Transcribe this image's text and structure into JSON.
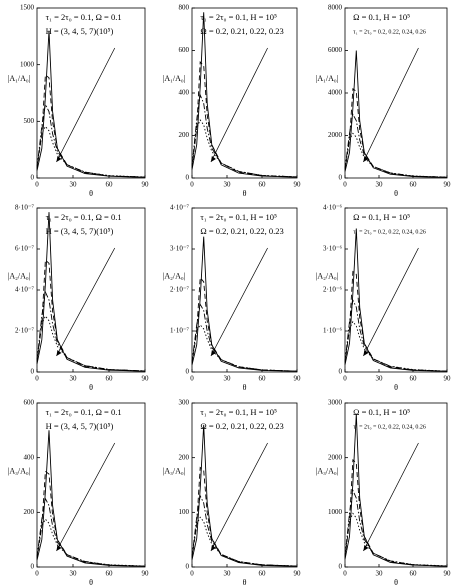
{
  "chart_data": [
    {
      "type": "line",
      "x_label": "θ",
      "y_label": "|A₁/A₀|",
      "annotations": [
        "τ₁ = 2τ₀ = 0.1, Ω = 0.1",
        "H = (3, 4, 5, 7)(10⁵)"
      ],
      "x": [
        0,
        4,
        7,
        10,
        13,
        17,
        25,
        40,
        60,
        90
      ],
      "xlim": [
        0,
        90
      ],
      "xticks": [
        0,
        30,
        60,
        90
      ],
      "ylim": [
        0,
        1500
      ],
      "yticks": [
        0,
        500,
        1000,
        1500
      ],
      "series": [
        {
          "color": "#000000",
          "dash": "solid",
          "values": [
            65,
            260,
            715,
            1300,
            585,
            260,
            104,
            39,
            16,
            6.5
          ]
        },
        {
          "color": "#000000",
          "dash": "dashed",
          "values": [
            78,
            390,
            910,
            884,
            494,
            260,
            117,
            45.5,
            18,
            8
          ]
        },
        {
          "color": "#000000",
          "dash": "dashdot",
          "values": [
            91,
            455,
            650,
            585,
            390,
            234,
            117,
            52,
            19.5,
            8
          ]
        },
        {
          "color": "#000000",
          "dash": "dotted",
          "values": [
            104,
            390,
            455,
            416,
            312,
            208,
            117,
            52,
            21,
            9
          ]
        }
      ]
    },
    {
      "type": "line",
      "x_label": "θ",
      "y_label": "|A₁/A₀|",
      "annotations": [
        "τ₁ = 2τ₀ = 0.1, H = 10⁵",
        "Ω = 0.2, 0.21, 0.22, 0.23"
      ],
      "x": [
        0,
        4,
        7,
        10,
        13,
        17,
        25,
        40,
        60,
        90
      ],
      "xlim": [
        0,
        90
      ],
      "xticks": [
        0,
        30,
        60,
        90
      ],
      "ylim": [
        0,
        800
      ],
      "yticks": [
        0,
        200,
        400,
        600,
        800
      ],
      "series": [
        {
          "color": "#000000",
          "dash": "solid",
          "values": [
            39,
            156,
            429,
            780,
            351,
            156,
            62,
            23,
            9,
            4
          ]
        },
        {
          "color": "#000000",
          "dash": "dashed",
          "values": [
            47,
            234,
            546,
            530,
            296,
            156,
            70,
            27,
            11,
            5
          ]
        },
        {
          "color": "#000000",
          "dash": "dashdot",
          "values": [
            55,
            273,
            390,
            351,
            234,
            140,
            70,
            31,
            12,
            5
          ]
        },
        {
          "color": "#000000",
          "dash": "dotted",
          "values": [
            62,
            234,
            273,
            250,
            187,
            125,
            70,
            31,
            12,
            5
          ]
        }
      ]
    },
    {
      "type": "line",
      "x_label": "θ",
      "y_label": "|A₁/A₀|",
      "annotations": [
        "Ω = 0.1, H = 10⁵",
        "τ₁ = 2τ₀ = 0.2, 0.22, 0.24, 0.26"
      ],
      "x": [
        0,
        4,
        7,
        10,
        13,
        17,
        25,
        40,
        60,
        90
      ],
      "xlim": [
        0,
        90
      ],
      "xticks": [
        0,
        30,
        60,
        90
      ],
      "ylim": [
        0,
        8000
      ],
      "yticks": [
        0,
        2000,
        4000,
        6000,
        8000
      ],
      "series": [
        {
          "color": "#000000",
          "dash": "solid",
          "values": [
            300,
            1200,
            3300,
            6000,
            2700,
            1200,
            480,
            180,
            72,
            30
          ]
        },
        {
          "color": "#000000",
          "dash": "dashed",
          "values": [
            360,
            1800,
            4200,
            4080,
            2280,
            1200,
            540,
            210,
            84,
            36
          ]
        },
        {
          "color": "#000000",
          "dash": "dashdot",
          "values": [
            420,
            2100,
            3000,
            2700,
            1800,
            1080,
            540,
            240,
            90,
            36
          ]
        },
        {
          "color": "#000000",
          "dash": "dotted",
          "values": [
            480,
            1800,
            2100,
            1920,
            1440,
            960,
            540,
            240,
            96,
            42
          ]
        }
      ]
    },
    {
      "type": "line",
      "x_label": "θ",
      "y_label": "|A₂/A₀|",
      "annotations": [
        "τ₁ = 2τ₀ = 0.1, Ω = 0.1",
        "H = (3, 4, 5, 7)(10⁵)"
      ],
      "x": [
        0,
        4,
        7,
        10,
        13,
        17,
        25,
        40,
        60,
        90
      ],
      "xlim": [
        0,
        90
      ],
      "xticks": [
        0,
        30,
        60,
        90
      ],
      "ylim": [
        0,
        8e-07
      ],
      "yticks": [
        0,
        {
          "value": 2e-07,
          "label": "2·10⁻⁷"
        },
        {
          "value": 4e-07,
          "label": "4·10⁻⁷"
        },
        {
          "value": 6e-07,
          "label": "6·10⁻⁷"
        },
        {
          "value": 8e-07,
          "label": "8·10⁻⁷"
        }
      ],
      "series": [
        {
          "color": "#000000",
          "dash": "solid",
          "values": [
            3.9e-08,
            1.56e-07,
            4.29e-07,
            7.8e-07,
            3.51e-07,
            1.56e-07,
            6.2e-08,
            2.3e-08,
            9e-09,
            4e-09
          ]
        },
        {
          "color": "#000000",
          "dash": "dashed",
          "values": [
            4.7e-08,
            2.34e-07,
            5.46e-07,
            5.3e-07,
            2.96e-07,
            1.56e-07,
            7e-08,
            2.7e-08,
            1.1e-08,
            5e-09
          ]
        },
        {
          "color": "#000000",
          "dash": "dashdot",
          "values": [
            5.5e-08,
            2.73e-07,
            3.9e-07,
            3.51e-07,
            2.34e-07,
            1.4e-07,
            7e-08,
            3.1e-08,
            1.2e-08,
            5e-09
          ]
        },
        {
          "color": "#000000",
          "dash": "dotted",
          "values": [
            6.2e-08,
            2.34e-07,
            2.73e-07,
            2.5e-07,
            1.87e-07,
            1.25e-07,
            7e-08,
            3.1e-08,
            1.2e-08,
            5e-09
          ]
        }
      ]
    },
    {
      "type": "line",
      "x_label": "θ",
      "y_label": "|A₂/A₀|",
      "annotations": [
        "τ₁ = 2τ₀ = 0.1, H = 10⁵",
        "Ω = 0.2, 0.21, 0.22, 0.23"
      ],
      "x": [
        0,
        4,
        7,
        10,
        13,
        17,
        25,
        40,
        60,
        90
      ],
      "xlim": [
        0,
        90
      ],
      "xticks": [
        0,
        30,
        60,
        90
      ],
      "ylim": [
        0,
        4e-07
      ],
      "yticks": [
        0,
        {
          "value": 1e-07,
          "label": "1·10⁻⁷"
        },
        {
          "value": 2e-07,
          "label": "2·10⁻⁷"
        },
        {
          "value": 3e-07,
          "label": "3·10⁻⁷"
        },
        {
          "value": 4e-07,
          "label": "4·10⁻⁷"
        }
      ],
      "series": [
        {
          "color": "#000000",
          "dash": "solid",
          "values": [
            1.7e-08,
            6.6e-08,
            1.8e-07,
            3.3e-07,
            1.5e-07,
            6.6e-08,
            2.6e-08,
            1e-08,
            4e-09,
            2e-09
          ]
        },
        {
          "color": "#000000",
          "dash": "dashed",
          "values": [
            2e-08,
            1e-07,
            2.3e-07,
            2.2e-07,
            1.25e-07,
            6.6e-08,
            3e-08,
            1.2e-08,
            5e-09,
            2e-09
          ]
        },
        {
          "color": "#000000",
          "dash": "dashdot",
          "values": [
            2.3e-08,
            1.15e-07,
            1.65e-07,
            1.5e-07,
            1e-07,
            6e-08,
            3e-08,
            1.3e-08,
            5e-09,
            2e-09
          ]
        },
        {
          "color": "#000000",
          "dash": "dotted",
          "values": [
            2.6e-08,
            1e-07,
            1.15e-07,
            1.05e-07,
            8e-08,
            5.3e-08,
            3e-08,
            1.3e-08,
            5e-09,
            2e-09
          ]
        }
      ]
    },
    {
      "type": "line",
      "x_label": "θ",
      "y_label": "|A₂/A₀|",
      "annotations": [
        "Ω = 0.1, H = 10⁵",
        "τ₁ = 2τ₀ = 0.2, 0.22, 0.24, 0.26"
      ],
      "x": [
        0,
        4,
        7,
        10,
        13,
        17,
        25,
        40,
        60,
        90
      ],
      "xlim": [
        0,
        90
      ],
      "xticks": [
        0,
        30,
        60,
        90
      ],
      "ylim": [
        0,
        4e-06
      ],
      "yticks": [
        0,
        {
          "value": 1e-06,
          "label": "1·10⁻⁶"
        },
        {
          "value": 2e-06,
          "label": "2·10⁻⁶"
        },
        {
          "value": 3e-06,
          "label": "3·10⁻⁶"
        },
        {
          "value": 4e-06,
          "label": "4·10⁻⁶"
        }
      ],
      "series": [
        {
          "color": "#000000",
          "dash": "solid",
          "values": [
            1.75e-07,
            7e-07,
            1.93e-06,
            3.5e-06,
            1.58e-06,
            7e-07,
            2.8e-07,
            1e-07,
            4e-08,
            2e-08
          ]
        },
        {
          "color": "#000000",
          "dash": "dashed",
          "values": [
            2.1e-07,
            1.05e-06,
            2.45e-06,
            2.38e-06,
            1.33e-06,
            7e-07,
            3.2e-07,
            1.2e-07,
            5e-08,
            2e-08
          ]
        },
        {
          "color": "#000000",
          "dash": "dashdot",
          "values": [
            2.45e-07,
            1.23e-06,
            1.75e-06,
            1.58e-06,
            1.05e-06,
            6.3e-07,
            3.2e-07,
            1.4e-07,
            5e-08,
            2e-08
          ]
        },
        {
          "color": "#000000",
          "dash": "dotted",
          "values": [
            2.8e-07,
            1.05e-06,
            1.23e-06,
            1.12e-06,
            8.4e-07,
            5.6e-07,
            3.2e-07,
            1.4e-07,
            6e-08,
            2e-08
          ]
        }
      ]
    },
    {
      "type": "line",
      "x_label": "θ",
      "y_label": "|A₃/A₀|",
      "annotations": [
        "τ₁ = 2τ₀ = 0.1, Ω = 0.1",
        "H = (3, 4, 5, 7)(10⁵)"
      ],
      "x": [
        0,
        4,
        7,
        10,
        13,
        17,
        25,
        40,
        60,
        90
      ],
      "xlim": [
        0,
        90
      ],
      "xticks": [
        0,
        30,
        60,
        90
      ],
      "ylim": [
        0,
        600
      ],
      "yticks": [
        0,
        200,
        400,
        600
      ],
      "series": [
        {
          "color": "#000000",
          "dash": "solid",
          "values": [
            25,
            100,
            275,
            500,
            225,
            100,
            40,
            15,
            6,
            2.5
          ]
        },
        {
          "color": "#000000",
          "dash": "dashed",
          "values": [
            30,
            150,
            350,
            340,
            190,
            100,
            45,
            17.5,
            7,
            3
          ]
        },
        {
          "color": "#000000",
          "dash": "dashdot",
          "values": [
            35,
            175,
            250,
            225,
            150,
            90,
            45,
            20,
            7.5,
            3
          ]
        },
        {
          "color": "#000000",
          "dash": "dotted",
          "values": [
            40,
            150,
            175,
            160,
            120,
            80,
            45,
            20,
            8,
            3.5
          ]
        }
      ]
    },
    {
      "type": "line",
      "x_label": "θ",
      "y_label": "|A₃/A₀|",
      "annotations": [
        "τ₁ = 2τ₀ = 0.1, H = 10⁵",
        "Ω = 0.2, 0.21, 0.22, 0.23"
      ],
      "x": [
        0,
        4,
        7,
        10,
        13,
        17,
        25,
        40,
        60,
        90
      ],
      "xlim": [
        0,
        90
      ],
      "xticks": [
        0,
        30,
        60,
        90
      ],
      "ylim": [
        0,
        300
      ],
      "yticks": [
        0,
        100,
        200,
        300
      ],
      "series": [
        {
          "color": "#000000",
          "dash": "solid",
          "values": [
            13,
            52,
            143,
            260,
            117,
            52,
            21,
            8,
            3,
            1.3
          ]
        },
        {
          "color": "#000000",
          "dash": "dashed",
          "values": [
            16,
            78,
            182,
            177,
            99,
            52,
            23,
            9,
            4,
            1.6
          ]
        },
        {
          "color": "#000000",
          "dash": "dashdot",
          "values": [
            18,
            91,
            130,
            117,
            78,
            47,
            23,
            10,
            4,
            1.6
          ]
        },
        {
          "color": "#000000",
          "dash": "dotted",
          "values": [
            21,
            78,
            91,
            83,
            62,
            42,
            23,
            10,
            4,
            1.8
          ]
        }
      ]
    },
    {
      "type": "line",
      "x_label": "θ",
      "y_label": "|A₃/A₀|",
      "annotations": [
        "Ω = 0.1, H = 10⁵",
        "τ₁ = 2τ₀ = 0.2, 0.22, 0.24, 0.26"
      ],
      "x": [
        0,
        4,
        7,
        10,
        13,
        17,
        25,
        40,
        60,
        90
      ],
      "xlim": [
        0,
        90
      ],
      "xticks": [
        0,
        30,
        60,
        90
      ],
      "ylim": [
        0,
        3000
      ],
      "yticks": [
        0,
        1000,
        2000,
        3000
      ],
      "series": [
        {
          "color": "#000000",
          "dash": "solid",
          "values": [
            140,
            560,
            1540,
            2800,
            1260,
            560,
            224,
            84,
            34,
            14
          ]
        },
        {
          "color": "#000000",
          "dash": "dashed",
          "values": [
            168,
            840,
            1960,
            1904,
            1064,
            560,
            252,
            98,
            39,
            17
          ]
        },
        {
          "color": "#000000",
          "dash": "dashdot",
          "values": [
            196,
            980,
            1400,
            1260,
            840,
            504,
            252,
            112,
            42,
            17
          ]
        },
        {
          "color": "#000000",
          "dash": "dotted",
          "values": [
            224,
            840,
            980,
            896,
            672,
            448,
            252,
            112,
            45,
            20
          ]
        }
      ]
    }
  ]
}
